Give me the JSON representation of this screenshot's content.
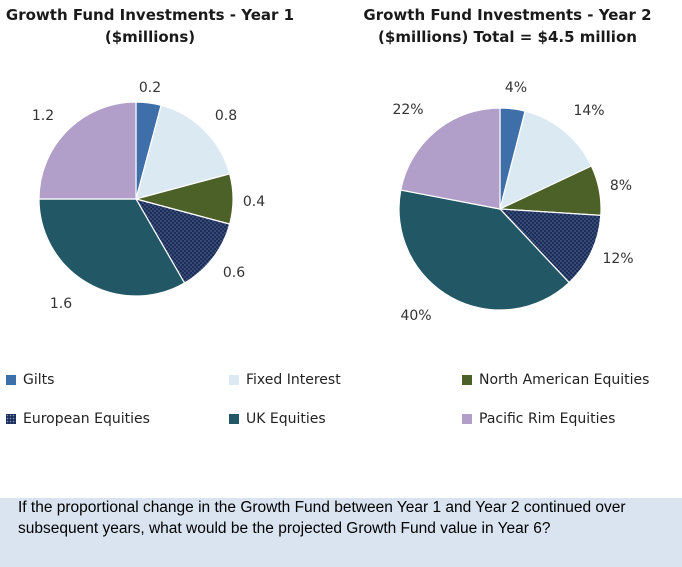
{
  "chart_data": [
    {
      "type": "pie",
      "title": "Growth Fund Investments - Year 1\n($millions)",
      "title_line1": "Growth Fund Investments - Year 1",
      "title_line2": "($millions)",
      "categories": [
        "Gilts",
        "Fixed Interest",
        "North American Equities",
        "European Equities",
        "UK Equities",
        "Pacific Rim Equities"
      ],
      "values": [
        0.2,
        0.8,
        0.4,
        0.6,
        1.6,
        1.2
      ],
      "labels": [
        "0.2",
        "0.8",
        "0.4",
        "0.6",
        "1.6",
        "1.2"
      ],
      "start_angle_deg": 90,
      "direction": "clockwise"
    },
    {
      "type": "pie",
      "title": "Growth Fund Investments - Year 2\n($millions) Total = $4.5 million",
      "title_line1": "Growth Fund Investments - Year 2",
      "title_line2": "($millions) Total = $4.5 million",
      "categories": [
        "Gilts",
        "Fixed Interest",
        "North American Equities",
        "European Equities",
        "UK Equities",
        "Pacific Rim Equities"
      ],
      "values": [
        4,
        14,
        8,
        12,
        40,
        22
      ],
      "labels": [
        "4%",
        "14%",
        "8%",
        "12%",
        "40%",
        "22%"
      ],
      "start_angle_deg": 90,
      "direction": "clockwise"
    }
  ],
  "legend": [
    {
      "label": "Gilts",
      "color": "#3f6fa8"
    },
    {
      "label": "Fixed Interest",
      "color": "#dbe9f3"
    },
    {
      "label": "North American Equities",
      "color": "#4b6128"
    },
    {
      "label": "European Equities",
      "color": "#1b2d59"
    },
    {
      "label": "UK Equities",
      "color": "#225866"
    },
    {
      "label": "Pacific Rim Equities",
      "color": "#b19fc9"
    }
  ],
  "colors": [
    "#3f6fa8",
    "#dbe9f3",
    "#4b6128",
    "#1b2d59",
    "#225866",
    "#b19fc9"
  ],
  "question": "If the proportional change in the Growth Fund between Year 1 and Year 2 continued over subsequent years, what would be the projected Growth Fund value in Year 6?"
}
